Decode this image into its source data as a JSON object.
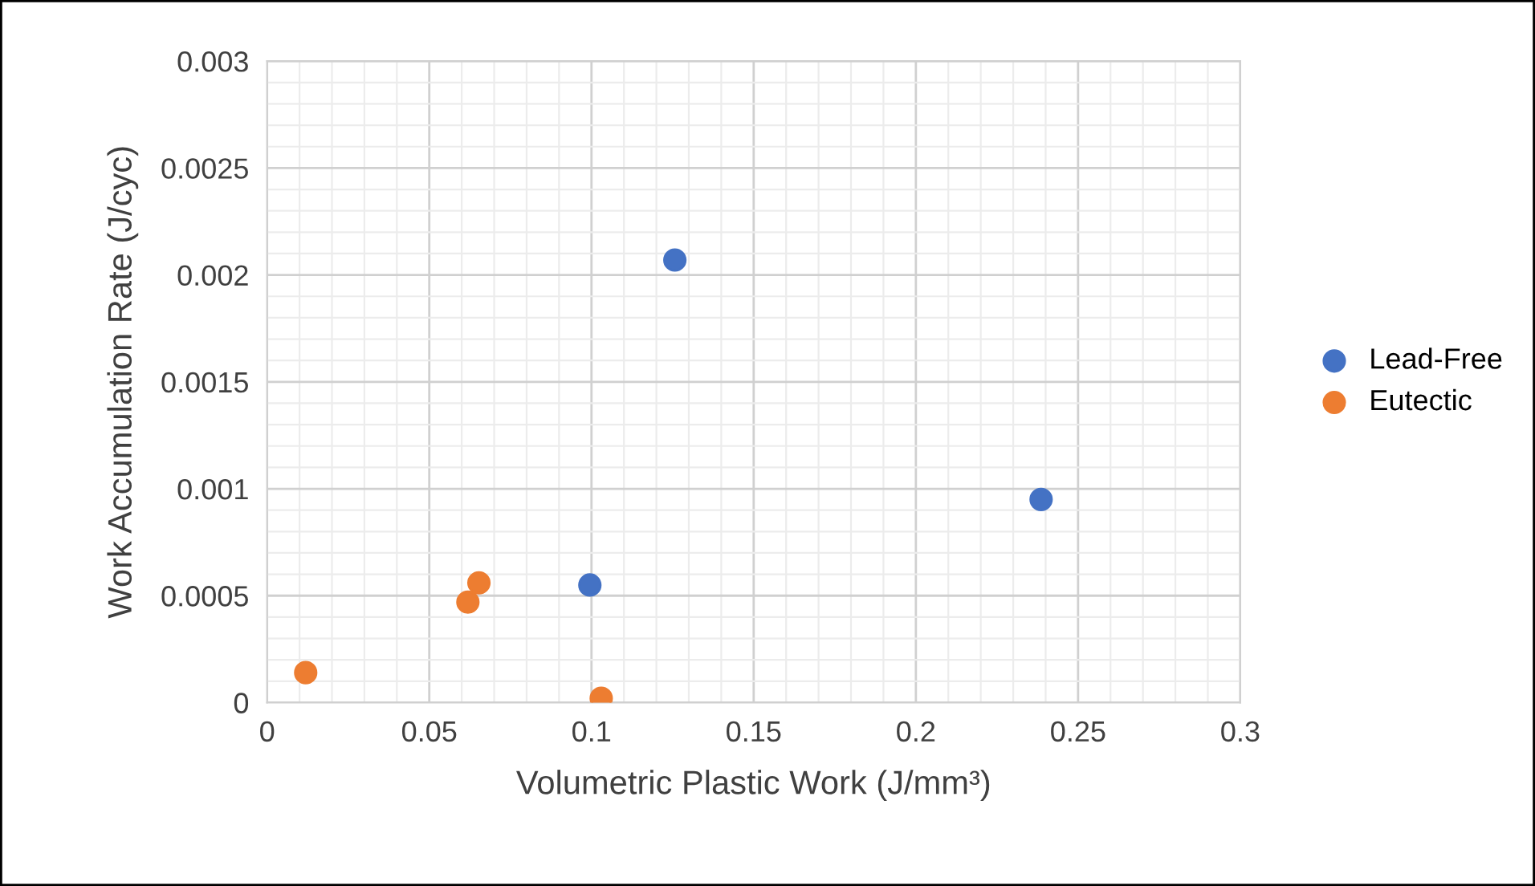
{
  "chart_data": {
    "type": "scatter",
    "xlabel": "Volumetric Plastic Work (J/mm³)",
    "ylabel": "Work Accumulation Rate (J/cyc)",
    "series": [
      {
        "name": "Lead-Free",
        "color": "#4472c4",
        "x": [
          0.1257,
          0.2386,
          0.0995
        ],
        "values": [
          0.00207,
          0.00095,
          0.00055
        ]
      },
      {
        "name": "Eutectic",
        "color": "#ed7d31",
        "x": [
          0.0119,
          0.0619,
          0.0653,
          0.103
        ],
        "values": [
          0.00014,
          0.00047,
          0.00056,
          2e-05
        ]
      }
    ],
    "xlim": [
      0,
      0.3
    ],
    "xticks": [
      0,
      0.05,
      0.1,
      0.15,
      0.2,
      0.25,
      0.3
    ],
    "ylim": [
      0,
      0.003
    ],
    "yticks": [
      0,
      0.0005,
      0.001,
      0.0015,
      0.002,
      0.0025,
      0.003
    ],
    "grid": true,
    "legend": "right",
    "marker": "circle"
  }
}
